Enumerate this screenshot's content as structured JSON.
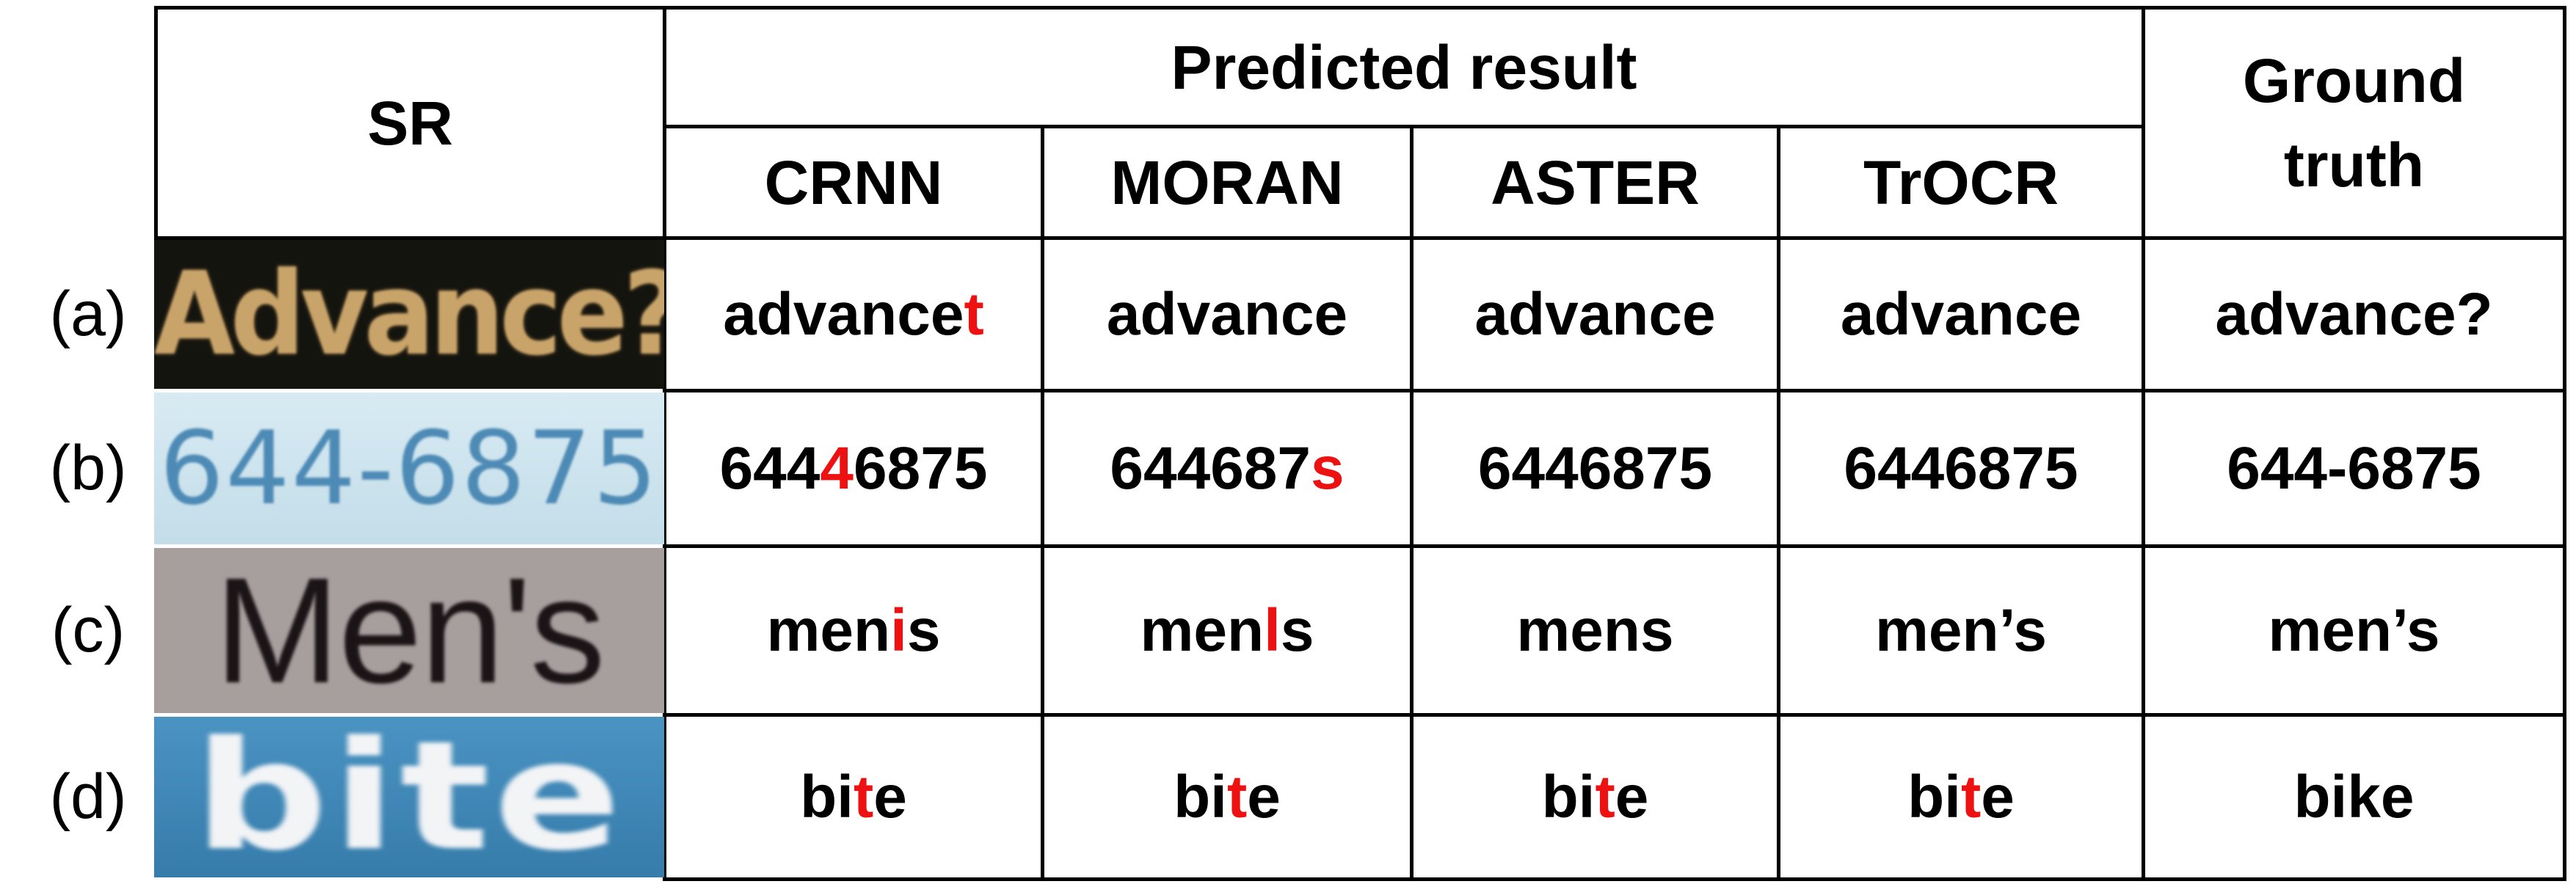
{
  "headers": {
    "sr": "SR",
    "predicted": "Predicted result",
    "ground_truth_line1": "Ground",
    "ground_truth_line2": "truth",
    "models": [
      "CRNN",
      "MORAN",
      "ASTER",
      "TrOCR"
    ]
  },
  "rows": [
    {
      "label": "(a)",
      "sr_text": "Advance?",
      "cells": [
        {
          "pre": "advance",
          "err": "t",
          "post": ""
        },
        {
          "pre": "advance",
          "err": "",
          "post": ""
        },
        {
          "pre": "advance",
          "err": "",
          "post": ""
        },
        {
          "pre": "advance",
          "err": "",
          "post": ""
        }
      ],
      "ground_truth": "advance?"
    },
    {
      "label": "(b)",
      "sr_text": "644-6875",
      "cells": [
        {
          "pre": "644",
          "err": "4",
          "post": "6875"
        },
        {
          "pre": "644687",
          "err": "s",
          "post": ""
        },
        {
          "pre": "6446875",
          "err": "",
          "post": ""
        },
        {
          "pre": "6446875",
          "err": "",
          "post": ""
        }
      ],
      "ground_truth": "644-6875"
    },
    {
      "label": "(c)",
      "sr_text": "Men's",
      "cells": [
        {
          "pre": "men",
          "err": "i",
          "post": "s"
        },
        {
          "pre": "men",
          "err": "l",
          "post": "s"
        },
        {
          "pre": "mens",
          "err": "",
          "post": ""
        },
        {
          "pre": "men’s",
          "err": "",
          "post": ""
        }
      ],
      "ground_truth": "men’s"
    },
    {
      "label": "(d)",
      "sr_text": "bite",
      "cells": [
        {
          "pre": "bi",
          "err": "t",
          "post": "e"
        },
        {
          "pre": "bi",
          "err": "t",
          "post": "e"
        },
        {
          "pre": "bi",
          "err": "t",
          "post": "e"
        },
        {
          "pre": "bi",
          "err": "t",
          "post": "e"
        }
      ],
      "ground_truth": "bike"
    }
  ],
  "colors": {
    "error": "#ee1111",
    "sr_a_bg": "#14140f",
    "sr_a_text": "#c9a46a",
    "sr_b_bg": "#cfe4ee",
    "sr_b_text": "#4d8ab5",
    "sr_c_bg": "#a79e9e",
    "sr_c_text": "#1b1416",
    "sr_d_bg": "#3f87b8",
    "sr_d_text": "#f2f4f6"
  }
}
